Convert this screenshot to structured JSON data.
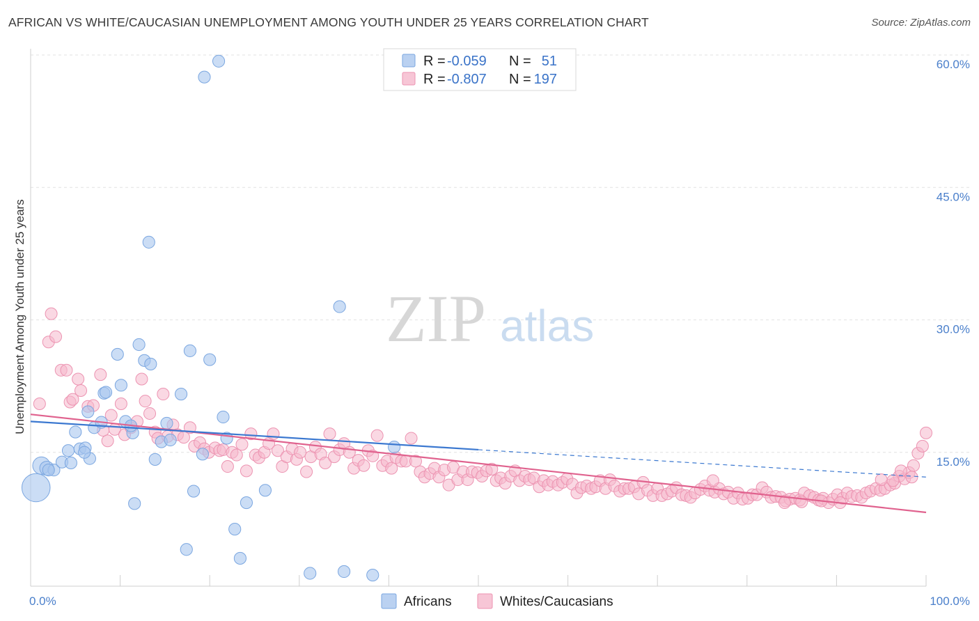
{
  "title": "AFRICAN VS WHITE/CAUCASIAN UNEMPLOYMENT AMONG YOUTH UNDER 25 YEARS CORRELATION CHART",
  "source": "Source: ZipAtlas.com",
  "watermark": {
    "zip": "ZIP",
    "atlas": "atlas"
  },
  "colors": {
    "africans": "#a9c6ee",
    "africans_stroke": "#7aa6e0",
    "africans_line": "#3b78d0",
    "whites": "#f5b8cc",
    "whites_stroke": "#ec93b1",
    "whites_line": "#e0628e",
    "tick": "#4a7fcb"
  },
  "legend": {
    "rows": [
      {
        "r_label": "R = ",
        "r_value": "-0.059",
        "n_label": "N = ",
        "n_value": "51"
      },
      {
        "r_label": "R = ",
        "r_value": "-0.807",
        "n_label": "N = ",
        "n_value": "197"
      }
    ]
  },
  "bottom_legend": {
    "africans": "Africans",
    "whites": "Whites/Caucasians"
  },
  "chart_data": {
    "type": "scatter",
    "title": "AFRICAN VS WHITE/CAUCASIAN UNEMPLOYMENT AMONG YOUTH UNDER 25 YEARS CORRELATION CHART",
    "xlabel": "",
    "ylabel": "Unemployment Among Youth under 25 years",
    "xlim": [
      0,
      100
    ],
    "ylim": [
      0,
      60
    ],
    "x_tick_labels": [
      "0.0%",
      "100.0%"
    ],
    "y_ticks": [
      15,
      30,
      45,
      60
    ],
    "y_tick_labels": [
      "15.0%",
      "30.0%",
      "45.0%",
      "60.0%"
    ],
    "series": [
      {
        "name": "Africans",
        "r": -0.059,
        "n": 51,
        "trend": {
          "x": [
            0,
            50
          ],
          "y": [
            18.5,
            15.3
          ]
        },
        "trend_dashed": {
          "x": [
            50,
            100
          ],
          "y": [
            15.3,
            12.2
          ]
        },
        "points": [
          [
            0.6,
            11.0
          ],
          [
            1.2,
            13.5
          ],
          [
            1.8,
            13.2
          ],
          [
            2.6,
            13.0
          ],
          [
            3.5,
            13.9
          ],
          [
            4.2,
            15.2
          ],
          [
            4.5,
            13.8
          ],
          [
            5.0,
            17.3
          ],
          [
            5.5,
            15.4
          ],
          [
            6.1,
            15.5
          ],
          [
            6.6,
            14.3
          ],
          [
            6.4,
            19.6
          ],
          [
            7.1,
            17.8
          ],
          [
            7.9,
            18.4
          ],
          [
            8.2,
            21.7
          ],
          [
            8.4,
            21.8
          ],
          [
            9.7,
            26.1
          ],
          [
            10.1,
            22.6
          ],
          [
            10.6,
            18.5
          ],
          [
            11.4,
            17.2
          ],
          [
            11.6,
            9.2
          ],
          [
            12.1,
            27.2
          ],
          [
            12.7,
            25.4
          ],
          [
            13.2,
            38.8
          ],
          [
            13.4,
            25.0
          ],
          [
            13.9,
            14.2
          ],
          [
            14.6,
            16.2
          ],
          [
            15.2,
            18.3
          ],
          [
            15.6,
            16.4
          ],
          [
            16.8,
            21.6
          ],
          [
            17.4,
            4.0
          ],
          [
            17.8,
            26.5
          ],
          [
            18.2,
            10.6
          ],
          [
            19.2,
            14.8
          ],
          [
            19.4,
            57.5
          ],
          [
            20.0,
            25.5
          ],
          [
            21.0,
            59.3
          ],
          [
            21.5,
            19.0
          ],
          [
            21.9,
            16.6
          ],
          [
            22.8,
            6.3
          ],
          [
            23.4,
            3.0
          ],
          [
            24.1,
            9.3
          ],
          [
            26.2,
            10.7
          ],
          [
            31.2,
            1.3
          ],
          [
            34.5,
            31.5
          ],
          [
            35.0,
            1.5
          ],
          [
            38.2,
            1.1
          ],
          [
            40.6,
            15.6
          ],
          [
            11.2,
            18.0
          ],
          [
            6.0,
            15.0
          ],
          [
            2.0,
            13.0
          ]
        ],
        "sizes": [
          26,
          16,
          13,
          11,
          11,
          11,
          11,
          11,
          11,
          11,
          11,
          11,
          11,
          11,
          11,
          11,
          11,
          11,
          11,
          11,
          11,
          11,
          11,
          11,
          11,
          11,
          11,
          11,
          11,
          11,
          11,
          11,
          11,
          11,
          11,
          11,
          11,
          11,
          11,
          11,
          11,
          11,
          11,
          11,
          11,
          11,
          11,
          11,
          11,
          11,
          11
        ]
      },
      {
        "name": "Whites/Caucasians",
        "r": -0.807,
        "n": 197,
        "trend": {
          "x": [
            0,
            100
          ],
          "y": [
            19.3,
            8.2
          ]
        },
        "points": [
          [
            1.0,
            20.5
          ],
          [
            2.0,
            27.5
          ],
          [
            2.3,
            30.7
          ],
          [
            2.8,
            28.1
          ],
          [
            3.4,
            24.3
          ],
          [
            4.0,
            24.3
          ],
          [
            4.4,
            20.7
          ],
          [
            4.7,
            21.0
          ],
          [
            5.3,
            23.3
          ],
          [
            5.6,
            22.0
          ],
          [
            6.4,
            20.2
          ],
          [
            7.0,
            20.3
          ],
          [
            7.8,
            23.8
          ],
          [
            8.1,
            17.5
          ],
          [
            8.6,
            16.3
          ],
          [
            9.0,
            19.2
          ],
          [
            9.4,
            17.6
          ],
          [
            10.1,
            20.5
          ],
          [
            10.5,
            17.0
          ],
          [
            11.2,
            17.8
          ],
          [
            11.9,
            18.5
          ],
          [
            12.4,
            23.3
          ],
          [
            12.8,
            20.8
          ],
          [
            13.3,
            19.4
          ],
          [
            13.9,
            17.3
          ],
          [
            14.2,
            16.6
          ],
          [
            14.8,
            21.6
          ],
          [
            15.3,
            16.8
          ],
          [
            15.9,
            18.1
          ],
          [
            16.4,
            17.0
          ],
          [
            17.1,
            16.7
          ],
          [
            17.8,
            17.8
          ],
          [
            18.3,
            15.7
          ],
          [
            18.9,
            16.1
          ],
          [
            19.4,
            15.4
          ],
          [
            19.9,
            15.0
          ],
          [
            20.6,
            15.5
          ],
          [
            21.1,
            15.2
          ],
          [
            21.5,
            15.3
          ],
          [
            22.0,
            13.4
          ],
          [
            22.5,
            15.0
          ],
          [
            23.0,
            14.7
          ],
          [
            23.6,
            15.9
          ],
          [
            24.1,
            12.9
          ],
          [
            24.6,
            17.1
          ],
          [
            25.1,
            14.7
          ],
          [
            25.5,
            14.4
          ],
          [
            26.1,
            15.0
          ],
          [
            26.6,
            16.0
          ],
          [
            27.1,
            17.1
          ],
          [
            27.6,
            15.2
          ],
          [
            28.1,
            13.4
          ],
          [
            28.6,
            14.5
          ],
          [
            29.2,
            15.4
          ],
          [
            29.7,
            14.2
          ],
          [
            30.1,
            15.0
          ],
          [
            30.8,
            12.8
          ],
          [
            31.3,
            14.5
          ],
          [
            31.8,
            15.6
          ],
          [
            32.4,
            14.8
          ],
          [
            32.9,
            13.8
          ],
          [
            33.4,
            17.1
          ],
          [
            33.9,
            14.5
          ],
          [
            34.5,
            15.3
          ],
          [
            35.0,
            16.0
          ],
          [
            35.6,
            15.0
          ],
          [
            36.1,
            13.2
          ],
          [
            36.6,
            14.1
          ],
          [
            37.2,
            13.5
          ],
          [
            37.7,
            15.2
          ],
          [
            38.2,
            14.6
          ],
          [
            38.7,
            16.9
          ],
          [
            39.3,
            13.5
          ],
          [
            39.8,
            14.0
          ],
          [
            40.3,
            13.2
          ],
          [
            40.8,
            14.4
          ],
          [
            41.4,
            14.0
          ],
          [
            41.9,
            14.0
          ],
          [
            42.5,
            16.6
          ],
          [
            43.0,
            14.0
          ],
          [
            43.5,
            12.8
          ],
          [
            44.0,
            12.2
          ],
          [
            44.6,
            12.6
          ],
          [
            45.1,
            13.2
          ],
          [
            45.6,
            12.2
          ],
          [
            46.2,
            13.0
          ],
          [
            46.7,
            11.3
          ],
          [
            47.2,
            13.3
          ],
          [
            47.7,
            11.9
          ],
          [
            48.3,
            12.8
          ],
          [
            48.8,
            11.9
          ],
          [
            49.3,
            12.8
          ],
          [
            49.9,
            12.7
          ],
          [
            50.4,
            12.3
          ],
          [
            50.9,
            12.9
          ],
          [
            51.5,
            13.1
          ],
          [
            52.0,
            11.8
          ],
          [
            52.5,
            12.1
          ],
          [
            53.0,
            11.5
          ],
          [
            53.6,
            12.3
          ],
          [
            54.1,
            12.9
          ],
          [
            54.6,
            11.8
          ],
          [
            55.2,
            12.3
          ],
          [
            55.7,
            11.9
          ],
          [
            56.2,
            12.1
          ],
          [
            56.8,
            11.1
          ],
          [
            57.3,
            11.8
          ],
          [
            57.8,
            11.3
          ],
          [
            58.3,
            11.7
          ],
          [
            58.9,
            11.3
          ],
          [
            59.4,
            11.6
          ],
          [
            59.9,
            12.0
          ],
          [
            60.5,
            11.4
          ],
          [
            61.0,
            10.4
          ],
          [
            61.5,
            11.0
          ],
          [
            62.1,
            11.2
          ],
          [
            62.6,
            10.9
          ],
          [
            63.1,
            11.1
          ],
          [
            63.6,
            11.8
          ],
          [
            64.2,
            10.9
          ],
          [
            64.7,
            11.9
          ],
          [
            65.2,
            11.2
          ],
          [
            65.8,
            10.6
          ],
          [
            66.3,
            10.9
          ],
          [
            66.8,
            10.9
          ],
          [
            67.4,
            11.1
          ],
          [
            67.9,
            10.3
          ],
          [
            68.4,
            11.6
          ],
          [
            68.9,
            10.7
          ],
          [
            69.5,
            10.1
          ],
          [
            70.0,
            10.9
          ],
          [
            70.5,
            10.1
          ],
          [
            71.1,
            10.3
          ],
          [
            71.6,
            10.6
          ],
          [
            72.1,
            11.0
          ],
          [
            72.7,
            10.2
          ],
          [
            73.2,
            10.1
          ],
          [
            73.7,
            9.9
          ],
          [
            74.2,
            10.4
          ],
          [
            74.8,
            10.8
          ],
          [
            75.3,
            11.2
          ],
          [
            75.8,
            10.7
          ],
          [
            76.4,
            10.5
          ],
          [
            76.9,
            10.9
          ],
          [
            77.4,
            10.3
          ],
          [
            77.9,
            10.5
          ],
          [
            78.5,
            9.8
          ],
          [
            79.0,
            10.4
          ],
          [
            79.5,
            9.7
          ],
          [
            80.1,
            9.8
          ],
          [
            80.6,
            10.2
          ],
          [
            81.1,
            10.2
          ],
          [
            81.7,
            11.0
          ],
          [
            82.2,
            10.5
          ],
          [
            82.7,
            9.9
          ],
          [
            83.2,
            10.0
          ],
          [
            83.8,
            9.9
          ],
          [
            84.3,
            9.5
          ],
          [
            84.8,
            9.7
          ],
          [
            85.4,
            9.8
          ],
          [
            85.9,
            9.6
          ],
          [
            86.4,
            10.4
          ],
          [
            87.0,
            10.1
          ],
          [
            87.5,
            9.9
          ],
          [
            88.0,
            9.6
          ],
          [
            88.5,
            9.8
          ],
          [
            89.1,
            9.3
          ],
          [
            89.6,
            9.7
          ],
          [
            90.1,
            10.2
          ],
          [
            90.7,
            9.8
          ],
          [
            91.2,
            10.4
          ],
          [
            91.7,
            10.0
          ],
          [
            92.3,
            10.1
          ],
          [
            92.8,
            9.9
          ],
          [
            93.3,
            10.4
          ],
          [
            93.8,
            10.6
          ],
          [
            94.4,
            10.9
          ],
          [
            94.9,
            10.7
          ],
          [
            95.4,
            10.9
          ],
          [
            96.0,
            11.3
          ],
          [
            96.5,
            11.5
          ],
          [
            97.0,
            12.3
          ],
          [
            97.6,
            12.0
          ],
          [
            98.1,
            12.7
          ],
          [
            98.6,
            13.5
          ],
          [
            99.1,
            14.9
          ],
          [
            99.6,
            15.7
          ],
          [
            100.0,
            17.2
          ],
          [
            95.0,
            11.9
          ],
          [
            97.2,
            12.9
          ],
          [
            98.4,
            12.2
          ],
          [
            96.3,
            11.8
          ],
          [
            90.4,
            9.3
          ],
          [
            88.3,
            9.5
          ],
          [
            86.1,
            9.4
          ],
          [
            84.2,
            9.3
          ],
          [
            76.2,
            11.8
          ]
        ]
      }
    ]
  }
}
